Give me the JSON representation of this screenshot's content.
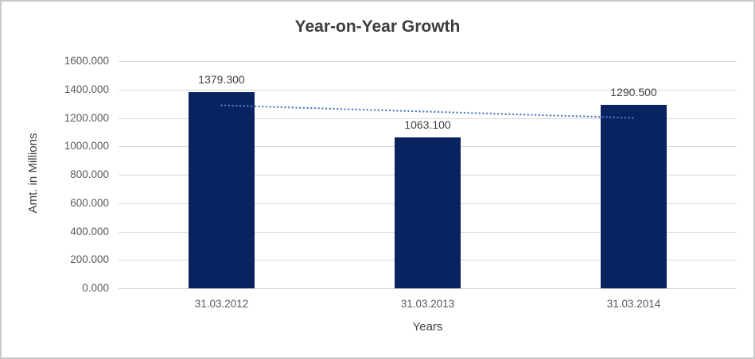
{
  "window": {
    "background": "#ffffff",
    "border_color": "#c9c9c9"
  },
  "chart_data": {
    "type": "bar",
    "title": "Year-on-Year Growth",
    "xlabel": "Years",
    "ylabel": "Amt. in Millions",
    "categories": [
      "31.03.2012",
      "31.03.2013",
      "31.03.2014"
    ],
    "values": [
      1379.3,
      1063.1,
      1290.5
    ],
    "value_labels": [
      "1379.300",
      "1063.100",
      "1290.500"
    ],
    "ylim": [
      0,
      1600
    ],
    "ytick_step": 200,
    "ytick_labels": [
      "0.000",
      "200.000",
      "400.000",
      "600.000",
      "800.000",
      "1000.000",
      "1200.000",
      "1400.000",
      "1600.000"
    ],
    "grid": true,
    "legend": "none",
    "trendline": {
      "type": "linear",
      "style": "dotted",
      "color": "#4f81bd"
    },
    "colors": {
      "bar": "#08235f",
      "gridline": "#d9d9d9",
      "axis_line": "#cfcfcf",
      "title_text": "#3d3d3d",
      "tick_text": "#595959",
      "label_text": "#404040"
    }
  }
}
